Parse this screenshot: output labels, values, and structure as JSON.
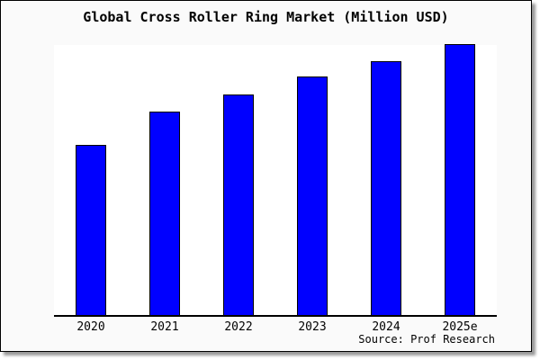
{
  "title": "Global Cross Roller Ring Market (Million USD)",
  "source": "Source: Prof Research",
  "colors": {
    "bar_fill": "#0000ff",
    "bar_border": "#000000",
    "plot_background": "#ffffff",
    "figure_background": "#fafafa",
    "axis_line": "#000000"
  },
  "chart_data": {
    "type": "bar",
    "title": "Global Cross Roller Ring Market (Million USD)",
    "categories": [
      "2020",
      "2021",
      "2022",
      "2023",
      "2024",
      "2025e"
    ],
    "values": [
      62.7,
      75.1,
      81.4,
      87.9,
      93.6,
      100
    ],
    "xlabel": "",
    "ylabel": "",
    "ylim": [
      0,
      100
    ],
    "value_note": "no y-axis scale shown; values estimated as bar heights relative to 2025e = 100",
    "grid": false,
    "legend": false,
    "y_axis_ticks_visible": false,
    "annotations": [
      "Source: Prof Research"
    ]
  }
}
